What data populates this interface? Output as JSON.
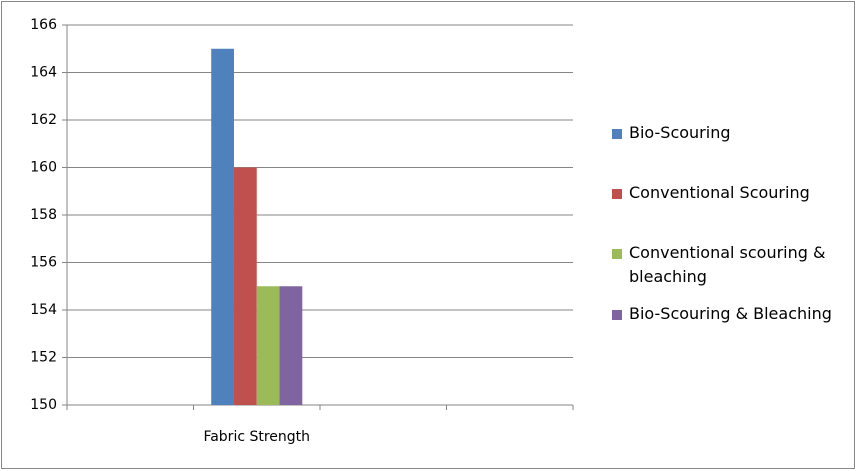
{
  "chart_data": {
    "type": "bar",
    "categories": [
      null,
      "Fabric Strength",
      null,
      null
    ],
    "series": [
      {
        "name": "Bio-Scouring",
        "color": "#4f81bd",
        "values": [
          null,
          165,
          null,
          null
        ]
      },
      {
        "name": "Conventional Scouring",
        "color": "#c0504d",
        "values": [
          null,
          160,
          null,
          null
        ]
      },
      {
        "name": "Conventional scouring & bleaching",
        "color": "#9bbb59",
        "values": [
          null,
          155,
          null,
          null
        ]
      },
      {
        "name": "Bio-Scouring & Bleaching",
        "color": "#8064a2",
        "values": [
          null,
          155,
          null,
          null
        ]
      }
    ],
    "ylim": [
      150,
      166
    ],
    "yticks": [
      150,
      152,
      154,
      156,
      158,
      160,
      162,
      164,
      166
    ],
    "grid": true,
    "legend": "right"
  }
}
